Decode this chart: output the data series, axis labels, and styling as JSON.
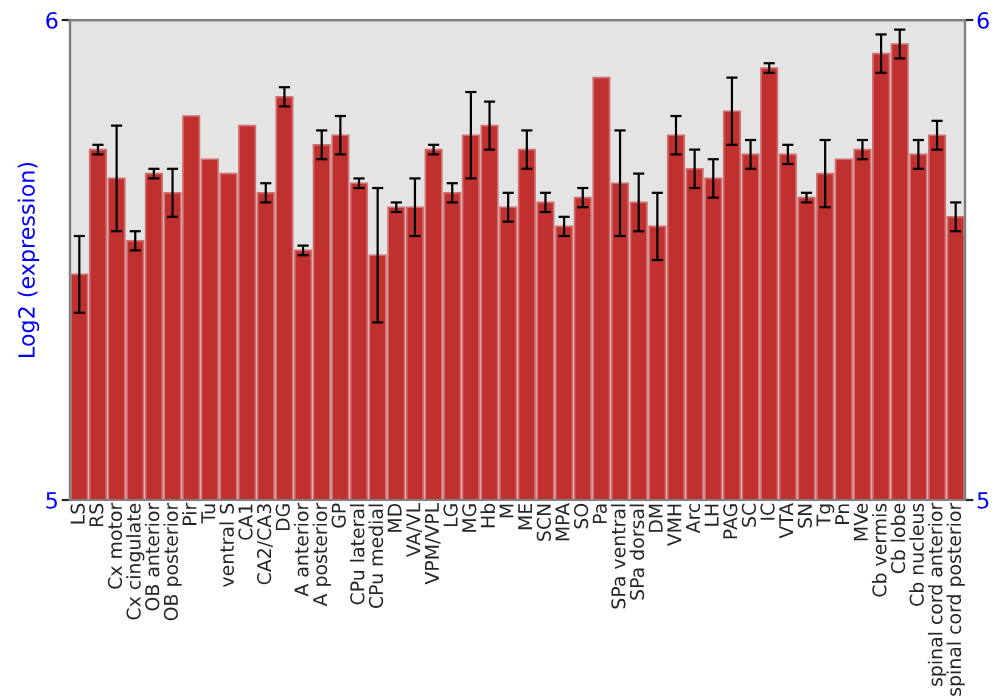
{
  "chart_data": {
    "type": "bar",
    "ylabel": "Log2 (expression)",
    "categories": [
      "LS",
      "RS",
      "Cx motor",
      "Cx cingulate",
      "OB anterior",
      "OB posterior",
      "Pir",
      "Tu",
      "ventral S",
      "CA1",
      "CA2/CA3",
      "DG",
      "A anterior",
      "A posterior",
      "GP",
      "CPu lateral",
      "CPu medial",
      "MD",
      "VA/VL",
      "VPM/VPL",
      "LG",
      "MG",
      "Hb",
      "M",
      "ME",
      "SCN",
      "MPA",
      "SO",
      "Pa",
      "SPa ventral",
      "SPa dorsal",
      "DM",
      "VMH",
      "Arc",
      "LH",
      "PAG",
      "SC",
      "IC",
      "VTA",
      "SN",
      "Tg",
      "Pn",
      "MVe",
      "Cb vermis",
      "Cb lobe",
      "Cb nucleus",
      "spinal cord anterior",
      "spinal cord posterior"
    ],
    "series": [
      {
        "color": "#c0302e",
        "values": [
          5.47,
          5.73,
          5.67,
          5.54,
          5.68,
          5.64,
          5.8,
          5.71,
          5.68,
          5.78,
          5.64,
          5.84,
          5.52,
          5.74,
          5.76,
          5.66,
          5.51,
          5.61,
          5.61,
          5.73,
          5.64,
          5.76,
          5.78,
          5.61,
          5.73,
          5.62,
          5.57,
          5.63,
          5.88,
          5.66,
          5.62,
          5.57,
          5.76,
          5.69,
          5.67,
          5.81,
          5.72,
          5.9,
          5.72,
          5.63,
          5.68,
          5.71,
          5.73,
          5.93,
          5.95,
          5.72,
          5.76,
          5.59
        ],
        "errors": [
          0.08,
          0.01,
          0.11,
          0.02,
          0.01,
          0.05,
          null,
          null,
          null,
          null,
          0.02,
          0.02,
          0.01,
          0.03,
          0.04,
          0.01,
          0.14,
          0.01,
          0.06,
          0.01,
          0.02,
          0.09,
          0.05,
          0.03,
          0.04,
          0.02,
          0.02,
          0.02,
          null,
          0.11,
          0.06,
          0.07,
          0.04,
          0.04,
          0.04,
          0.07,
          0.03,
          0.01,
          0.02,
          0.01,
          0.07,
          null,
          0.02,
          0.04,
          0.03,
          0.03,
          0.03,
          0.03
        ]
      }
    ],
    "ylim": [
      5,
      6
    ],
    "yticks": [
      5,
      6
    ],
    "y2lim": [
      5,
      6
    ],
    "y2ticks": [
      5,
      6
    ],
    "grid": false,
    "legend": false
  }
}
